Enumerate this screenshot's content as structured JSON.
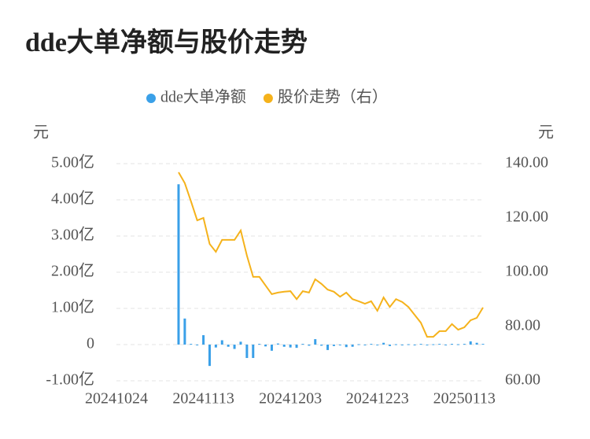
{
  "chart_data": {
    "type": "bar-line",
    "title": "dde大单净额与股价走势",
    "y_label": "元",
    "y2_label": "元",
    "legend": "top",
    "categories": [
      "20241024",
      null,
      null,
      null,
      null,
      null,
      null,
      null,
      null,
      null,
      null,
      null,
      null,
      null,
      "20241113",
      null,
      null,
      null,
      null,
      null,
      null,
      null,
      null,
      null,
      null,
      null,
      null,
      null,
      "20241203",
      null,
      null,
      null,
      null,
      null,
      null,
      null,
      null,
      null,
      null,
      null,
      null,
      null,
      "20241223",
      null,
      null,
      null,
      null,
      null,
      null,
      null,
      null,
      null,
      null,
      null,
      null,
      null,
      "20250113",
      null,
      null,
      null
    ],
    "series": [
      {
        "name": "dde大单净额",
        "type": "bar",
        "color": "#3aa0e8",
        "values": [
          null,
          null,
          null,
          null,
          null,
          null,
          null,
          null,
          null,
          null,
          4.43,
          0.72,
          0.02,
          -0.02,
          0.26,
          -0.59,
          -0.08,
          0.12,
          -0.06,
          -0.12,
          0.08,
          -0.37,
          -0.37,
          0.02,
          -0.05,
          -0.17,
          0.03,
          -0.06,
          -0.08,
          -0.09,
          0.02,
          -0.03,
          0.15,
          -0.03,
          -0.15,
          -0.04,
          -0.02,
          -0.07,
          -0.06,
          0.01,
          -0.02,
          0.02,
          -0.01,
          0.05,
          -0.04,
          0.01,
          -0.02,
          0.01,
          -0.01,
          0.02,
          -0.02,
          0.01,
          0.02,
          -0.01,
          0.02,
          0.01,
          0.02,
          0.09,
          0.05,
          0.02
        ]
      },
      {
        "name": "股价走势（右）",
        "type": "line",
        "axis": "y2",
        "color": "#f5b21b",
        "values": [
          null,
          null,
          null,
          null,
          null,
          null,
          null,
          null,
          null,
          null,
          136.8,
          132.8,
          126.1,
          119.1,
          120,
          110.4,
          107.5,
          111.9,
          111.9,
          111.9,
          115.4,
          106.1,
          98.3,
          98.3,
          95.1,
          91.9,
          92.5,
          92.8,
          93,
          90.1,
          93,
          92.5,
          97.4,
          95.7,
          93.6,
          92.8,
          91,
          92.5,
          90.1,
          89.3,
          88.4,
          89.3,
          85.8,
          90.7,
          87.2,
          90.1,
          89,
          87.2,
          84.3,
          81.4,
          76.2,
          76.2,
          78.3,
          78.3,
          80.9,
          78.8,
          79.7,
          82.3,
          83.2,
          87
        ]
      }
    ],
    "ylim": [
      -1,
      5
    ],
    "yticks": [
      {
        "value": 5,
        "label": "5.00亿"
      },
      {
        "value": 4,
        "label": "4.00亿"
      },
      {
        "value": 3,
        "label": "3.00亿"
      },
      {
        "value": 2,
        "label": "2.00亿"
      },
      {
        "value": 1,
        "label": "1.00亿"
      },
      0,
      {
        "value": -1,
        "label": "-1.00亿"
      }
    ],
    "y2lim": [
      60,
      140
    ],
    "y2ticks": [
      {
        "value": 140,
        "label": "140.00"
      },
      {
        "value": 120,
        "label": "120.00"
      },
      {
        "value": 100,
        "label": "100.00"
      },
      {
        "value": 80,
        "label": "80.00"
      },
      {
        "value": 60,
        "label": "60.00"
      }
    ],
    "grid": true
  }
}
